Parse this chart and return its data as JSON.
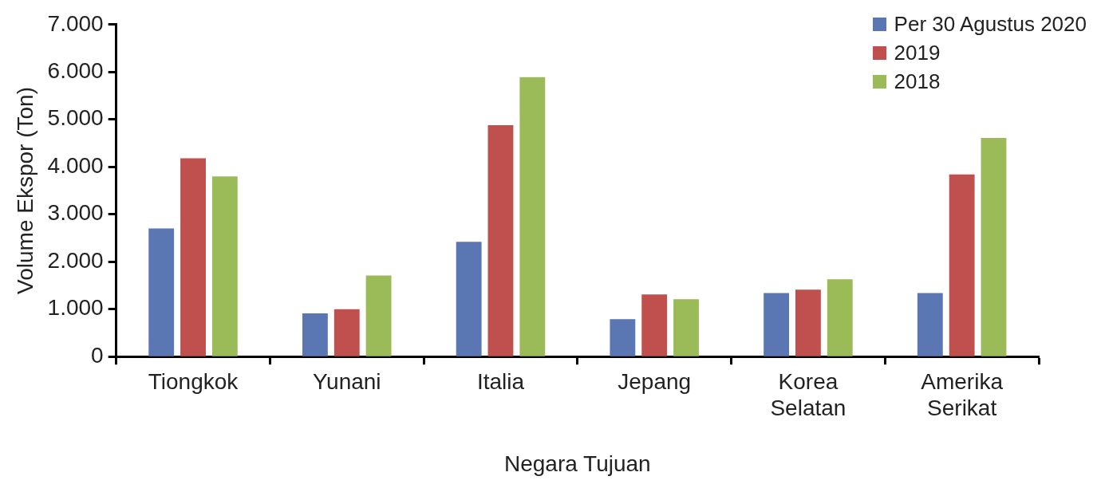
{
  "chart_data": {
    "type": "bar",
    "xlabel": "Negara Tujuan",
    "ylabel": "Volume Ekspor (Ton)",
    "categories": [
      "Tiongkok",
      "Yunani",
      "Italia",
      "Jepang",
      "Korea Selatan",
      "Amerika Serikat"
    ],
    "series": [
      {
        "name": "Per 30 Agustus 2020",
        "color": "#5b77b3",
        "values": [
          2700,
          910,
          2420,
          790,
          1340,
          1340
        ]
      },
      {
        "name": "2019",
        "color": "#c0504d",
        "values": [
          4180,
          1000,
          4880,
          1310,
          1410,
          3840
        ]
      },
      {
        "name": "2018",
        "color": "#9bbb59",
        "values": [
          3800,
          1710,
          5890,
          1210,
          1630,
          4610
        ]
      }
    ],
    "ylim": [
      0,
      7000
    ],
    "yticks": [
      0,
      {
        "value": 1000,
        "label": "1.000"
      },
      {
        "value": 2000,
        "label": "2.000"
      },
      {
        "value": 3000,
        "label": "3.000"
      },
      {
        "value": 4000,
        "label": "4.000"
      },
      {
        "value": 5000,
        "label": "5.000"
      },
      {
        "value": 6000,
        "label": "6.000"
      },
      {
        "value": 7000,
        "label": "7.000"
      }
    ],
    "grid": false,
    "legend": "top right"
  }
}
